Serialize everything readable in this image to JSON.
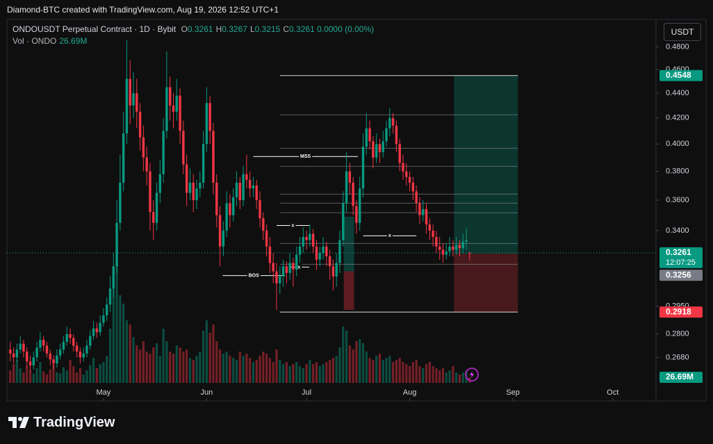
{
  "header": {
    "attribution": "Diamond-BTC created with TradingView.com, Aug 19, 2026 12:52 UTC+1"
  },
  "footer": {
    "logo": "TradingView"
  },
  "chart_data": {
    "type": "candlestick",
    "symbol": "ONDOUSDT Perpetual Contract · 1D · Bybit",
    "ohlc_legend": [
      {
        "key": "O",
        "value": "0.3261"
      },
      {
        "key": "H",
        "value": "0.3267"
      },
      {
        "key": "L",
        "value": "0.3215"
      },
      {
        "key": "C",
        "value": "0.3261"
      }
    ],
    "change": "0.0000 (0.00%)",
    "currency": "USDT",
    "up_color": "#089981",
    "down_color": "#f23645",
    "log_scale": true,
    "ylim": [
      0.247,
      0.504
    ],
    "yticks": [
      {
        "value": 0.48,
        "label": "0.4800"
      },
      {
        "value": 0.46,
        "label": "0.4600"
      },
      {
        "value": 0.44,
        "label": "0.4400"
      },
      {
        "value": 0.42,
        "label": "0.4200"
      },
      {
        "value": 0.4,
        "label": "0.4000"
      },
      {
        "value": 0.38,
        "label": "0.3800"
      },
      {
        "value": 0.36,
        "label": "0.3600"
      },
      {
        "value": 0.34,
        "label": "0.3400"
      },
      {
        "value": 0.295,
        "label": "0.2950"
      },
      {
        "value": 0.28,
        "label": "0.2800"
      },
      {
        "value": 0.268,
        "label": "0.2680"
      }
    ],
    "xlim": [
      -1,
      194
    ],
    "xticks": [
      {
        "value": 28,
        "label": "May"
      },
      {
        "value": 59,
        "label": "Jun"
      },
      {
        "value": 89,
        "label": "Jul"
      },
      {
        "value": 120,
        "label": "Aug"
      },
      {
        "value": 151,
        "label": "Sep"
      },
      {
        "value": 181,
        "label": "Oct"
      }
    ],
    "candles": [
      [
        0.272,
        0.276,
        0.266,
        0.27
      ],
      [
        0.27,
        0.273,
        0.265,
        0.268
      ],
      [
        0.268,
        0.275,
        0.266,
        0.272
      ],
      [
        0.272,
        0.279,
        0.27,
        0.275
      ],
      [
        0.275,
        0.277,
        0.268,
        0.271
      ],
      [
        0.271,
        0.273,
        0.263,
        0.266
      ],
      [
        0.266,
        0.269,
        0.261,
        0.264
      ],
      [
        0.264,
        0.271,
        0.262,
        0.268
      ],
      [
        0.268,
        0.276,
        0.266,
        0.273
      ],
      [
        0.273,
        0.281,
        0.271,
        0.277
      ],
      [
        0.277,
        0.279,
        0.271,
        0.274
      ],
      [
        0.274,
        0.276,
        0.268,
        0.27
      ],
      [
        0.27,
        0.272,
        0.264,
        0.267
      ],
      [
        0.267,
        0.269,
        0.262,
        0.265
      ],
      [
        0.265,
        0.272,
        0.263,
        0.269
      ],
      [
        0.269,
        0.275,
        0.267,
        0.272
      ],
      [
        0.272,
        0.279,
        0.27,
        0.276
      ],
      [
        0.276,
        0.284,
        0.274,
        0.28
      ],
      [
        0.28,
        0.283,
        0.275,
        0.278
      ],
      [
        0.278,
        0.28,
        0.271,
        0.274
      ],
      [
        0.274,
        0.276,
        0.268,
        0.271
      ],
      [
        0.271,
        0.273,
        0.265,
        0.268
      ],
      [
        0.268,
        0.273,
        0.266,
        0.27
      ],
      [
        0.27,
        0.277,
        0.268,
        0.274
      ],
      [
        0.274,
        0.282,
        0.272,
        0.279
      ],
      [
        0.279,
        0.287,
        0.277,
        0.283
      ],
      [
        0.283,
        0.286,
        0.278,
        0.281
      ],
      [
        0.281,
        0.29,
        0.279,
        0.286
      ],
      [
        0.286,
        0.294,
        0.284,
        0.29
      ],
      [
        0.29,
        0.3,
        0.287,
        0.296
      ],
      [
        0.296,
        0.312,
        0.292,
        0.305
      ],
      [
        0.305,
        0.326,
        0.3,
        0.318
      ],
      [
        0.318,
        0.36,
        0.314,
        0.345
      ],
      [
        0.345,
        0.392,
        0.34,
        0.372
      ],
      [
        0.372,
        0.425,
        0.366,
        0.408
      ],
      [
        0.408,
        0.486,
        0.4,
        0.452
      ],
      [
        0.452,
        0.468,
        0.415,
        0.43
      ],
      [
        0.43,
        0.458,
        0.42,
        0.44
      ],
      [
        0.44,
        0.452,
        0.412,
        0.425
      ],
      [
        0.425,
        0.432,
        0.395,
        0.405
      ],
      [
        0.405,
        0.414,
        0.38,
        0.39
      ],
      [
        0.39,
        0.398,
        0.37,
        0.38
      ],
      [
        0.38,
        0.386,
        0.34,
        0.352
      ],
      [
        0.352,
        0.36,
        0.334,
        0.345
      ],
      [
        0.345,
        0.372,
        0.34,
        0.365
      ],
      [
        0.365,
        0.388,
        0.358,
        0.378
      ],
      [
        0.378,
        0.42,
        0.372,
        0.41
      ],
      [
        0.41,
        0.476,
        0.404,
        0.445
      ],
      [
        0.445,
        0.454,
        0.418,
        0.43
      ],
      [
        0.43,
        0.44,
        0.412,
        0.425
      ],
      [
        0.425,
        0.452,
        0.418,
        0.438
      ],
      [
        0.438,
        0.444,
        0.4,
        0.41
      ],
      [
        0.41,
        0.418,
        0.378,
        0.385
      ],
      [
        0.385,
        0.392,
        0.356,
        0.365
      ],
      [
        0.365,
        0.382,
        0.36,
        0.372
      ],
      [
        0.372,
        0.378,
        0.352,
        0.36
      ],
      [
        0.36,
        0.374,
        0.354,
        0.368
      ],
      [
        0.368,
        0.38,
        0.362,
        0.372
      ],
      [
        0.372,
        0.41,
        0.368,
        0.4
      ],
      [
        0.4,
        0.445,
        0.394,
        0.432
      ],
      [
        0.432,
        0.438,
        0.4,
        0.41
      ],
      [
        0.41,
        0.416,
        0.364,
        0.372
      ],
      [
        0.372,
        0.378,
        0.342,
        0.35
      ],
      [
        0.35,
        0.356,
        0.318,
        0.33
      ],
      [
        0.33,
        0.346,
        0.324,
        0.34
      ],
      [
        0.34,
        0.366,
        0.336,
        0.358
      ],
      [
        0.358,
        0.364,
        0.342,
        0.35
      ],
      [
        0.35,
        0.368,
        0.346,
        0.362
      ],
      [
        0.362,
        0.38,
        0.356,
        0.372
      ],
      [
        0.372,
        0.376,
        0.354,
        0.36
      ],
      [
        0.36,
        0.384,
        0.356,
        0.378
      ],
      [
        0.378,
        0.392,
        0.368,
        0.374
      ],
      [
        0.374,
        0.38,
        0.362,
        0.368
      ],
      [
        0.368,
        0.376,
        0.362,
        0.37
      ],
      [
        0.37,
        0.374,
        0.354,
        0.36
      ],
      [
        0.36,
        0.366,
        0.342,
        0.348
      ],
      [
        0.348,
        0.352,
        0.334,
        0.34
      ],
      [
        0.34,
        0.344,
        0.324,
        0.33
      ],
      [
        0.33,
        0.336,
        0.314,
        0.32
      ],
      [
        0.32,
        0.326,
        0.308,
        0.315
      ],
      [
        0.315,
        0.32,
        0.293,
        0.308
      ],
      [
        0.308,
        0.318,
        0.302,
        0.312
      ],
      [
        0.312,
        0.322,
        0.306,
        0.318
      ],
      [
        0.318,
        0.321,
        0.308,
        0.314
      ],
      [
        0.314,
        0.326,
        0.31,
        0.32
      ],
      [
        0.32,
        0.323,
        0.306,
        0.316
      ],
      [
        0.316,
        0.33,
        0.312,
        0.325
      ],
      [
        0.325,
        0.336,
        0.32,
        0.33
      ],
      [
        0.33,
        0.342,
        0.326,
        0.336
      ],
      [
        0.336,
        0.34,
        0.328,
        0.334
      ],
      [
        0.334,
        0.344,
        0.33,
        0.338
      ],
      [
        0.338,
        0.341,
        0.326,
        0.33
      ],
      [
        0.33,
        0.334,
        0.316,
        0.322
      ],
      [
        0.322,
        0.33,
        0.318,
        0.326
      ],
      [
        0.326,
        0.336,
        0.322,
        0.33
      ],
      [
        0.33,
        0.333,
        0.318,
        0.324
      ],
      [
        0.324,
        0.328,
        0.31,
        0.318
      ],
      [
        0.318,
        0.322,
        0.304,
        0.312
      ],
      [
        0.312,
        0.326,
        0.306,
        0.32
      ],
      [
        0.32,
        0.34,
        0.314,
        0.334
      ],
      [
        0.334,
        0.366,
        0.33,
        0.358
      ],
      [
        0.358,
        0.394,
        0.352,
        0.38
      ],
      [
        0.38,
        0.386,
        0.364,
        0.372
      ],
      [
        0.372,
        0.376,
        0.35,
        0.356
      ],
      [
        0.356,
        0.36,
        0.338,
        0.345
      ],
      [
        0.345,
        0.376,
        0.34,
        0.368
      ],
      [
        0.368,
        0.408,
        0.362,
        0.398
      ],
      [
        0.398,
        0.424,
        0.392,
        0.412
      ],
      [
        0.412,
        0.418,
        0.396,
        0.402
      ],
      [
        0.402,
        0.406,
        0.382,
        0.39
      ],
      [
        0.39,
        0.408,
        0.386,
        0.4
      ],
      [
        0.4,
        0.404,
        0.386,
        0.394
      ],
      [
        0.394,
        0.41,
        0.39,
        0.402
      ],
      [
        0.402,
        0.418,
        0.398,
        0.412
      ],
      [
        0.412,
        0.428,
        0.406,
        0.42
      ],
      [
        0.42,
        0.424,
        0.408,
        0.414
      ],
      [
        0.414,
        0.418,
        0.394,
        0.4
      ],
      [
        0.4,
        0.404,
        0.38,
        0.386
      ],
      [
        0.386,
        0.392,
        0.374,
        0.38
      ],
      [
        0.38,
        0.386,
        0.37,
        0.376
      ],
      [
        0.376,
        0.38,
        0.366,
        0.372
      ],
      [
        0.372,
        0.376,
        0.36,
        0.366
      ],
      [
        0.366,
        0.37,
        0.352,
        0.358
      ],
      [
        0.358,
        0.362,
        0.344,
        0.35
      ],
      [
        0.35,
        0.36,
        0.346,
        0.354
      ],
      [
        0.354,
        0.358,
        0.338,
        0.344
      ],
      [
        0.344,
        0.348,
        0.334,
        0.34
      ],
      [
        0.34,
        0.344,
        0.33,
        0.336
      ],
      [
        0.336,
        0.34,
        0.326,
        0.33
      ],
      [
        0.33,
        0.336,
        0.322,
        0.328
      ],
      [
        0.328,
        0.332,
        0.32,
        0.325
      ],
      [
        0.325,
        0.332,
        0.322,
        0.327
      ],
      [
        0.327,
        0.336,
        0.324,
        0.33
      ],
      [
        0.33,
        0.334,
        0.324,
        0.328
      ],
      [
        0.328,
        0.336,
        0.325,
        0.331
      ],
      [
        0.331,
        0.334,
        0.324,
        0.329
      ],
      [
        0.329,
        0.338,
        0.326,
        0.333
      ],
      [
        0.333,
        0.342,
        0.328,
        0.334
      ],
      [
        0.3261,
        0.3267,
        0.3215,
        0.3261
      ]
    ],
    "volume": {
      "name": "Vol · ONDO",
      "last_label": "26.69M",
      "vlim": [
        0,
        700
      ],
      "values": [
        60,
        90,
        110,
        70,
        50,
        80,
        60,
        45,
        70,
        100,
        55,
        40,
        65,
        90,
        50,
        45,
        75,
        60,
        110,
        80,
        50,
        70,
        40,
        60,
        85,
        120,
        70,
        90,
        100,
        130,
        260,
        500,
        680,
        420,
        380,
        300,
        280,
        220,
        180,
        160,
        200,
        150,
        140,
        170,
        190,
        130,
        260,
        200,
        150,
        140,
        180,
        170,
        150,
        160,
        120,
        110,
        130,
        150,
        250,
        300,
        240,
        280,
        200,
        160,
        140,
        150,
        130,
        120,
        110,
        150,
        130,
        140,
        120,
        100,
        110,
        130,
        150,
        140,
        120,
        100,
        160,
        110,
        90,
        100,
        80,
        90,
        100,
        80,
        70,
        90,
        110,
        90,
        100,
        80,
        90,
        100,
        110,
        120,
        130,
        170,
        270,
        250,
        180,
        160,
        200,
        210,
        190,
        150,
        120,
        110,
        130,
        140,
        110,
        120,
        130,
        100,
        110,
        120,
        100,
        90,
        80,
        100,
        110,
        80,
        70,
        90,
        100,
        80,
        70,
        60,
        70,
        50,
        60,
        80,
        50,
        40,
        50,
        60,
        26.69
      ]
    },
    "last_price": {
      "value": 0.3261,
      "label": "0.3261",
      "countdown": "12:07:25"
    },
    "position": {
      "x": [
        133.3,
        152.5
      ],
      "target": {
        "value": 0.4548,
        "label": "0.4548"
      },
      "entry": {
        "value": 0.3256,
        "label": "0.3256"
      },
      "stop": {
        "value": 0.2918,
        "label": "0.2918"
      }
    },
    "mini_position": {
      "x": [
        100.2,
        103.3
      ],
      "target": 0.349,
      "entry": 0.315,
      "stop": 0.293
    },
    "levels": {
      "x": [
        81,
        152.5
      ],
      "prices": [
        0.4548,
        0.4225,
        0.3968,
        0.3836,
        0.3641,
        0.358,
        0.3516,
        0.3319,
        0.3192,
        0.2918
      ]
    },
    "structures": [
      {
        "label": "MSS",
        "price": 0.3907,
        "x": [
          73,
          104.4
        ]
      },
      {
        "label": "BOS",
        "price": 0.3125,
        "x": [
          63.8,
          82.5
        ]
      },
      {
        "label": "x",
        "price": 0.3433,
        "x": [
          80,
          89.8
        ]
      },
      {
        "label": "x",
        "price": 0.3367,
        "x": [
          106,
          122
        ]
      },
      {
        "label": "x",
        "price": 0.3175,
        "x": [
          83.7,
          89.8
        ]
      }
    ]
  }
}
